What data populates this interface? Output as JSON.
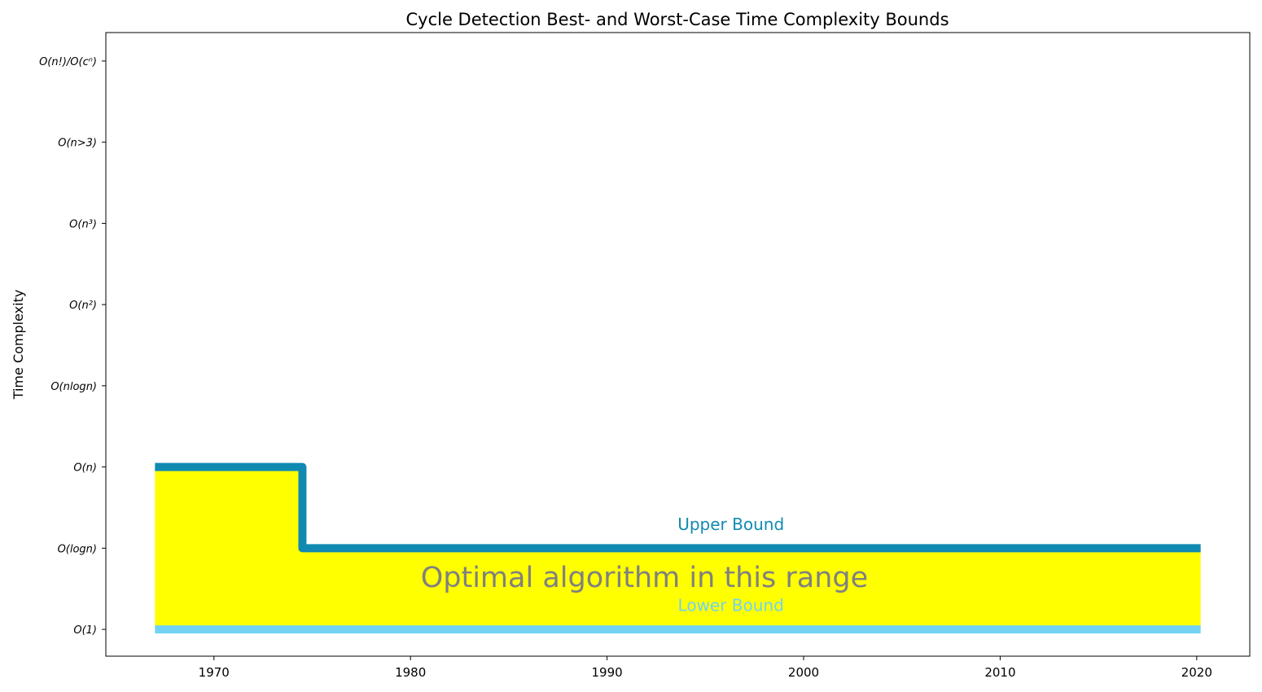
{
  "chart_data": {
    "type": "line",
    "title": "Cycle Detection Best- and Worst-Case Time Complexity Bounds",
    "xlabel": "",
    "ylabel": "Time Complexity",
    "xlim": [
      1964.5,
      2022.7
    ],
    "ylim": [
      -0.33,
      7.35
    ],
    "x_ticks": [
      1970,
      1980,
      1990,
      2000,
      2010,
      2020
    ],
    "y_ticks": [
      {
        "value": 0,
        "label": "O(1)"
      },
      {
        "value": 1,
        "label": "O(logn)"
      },
      {
        "value": 2,
        "label": "O(n)"
      },
      {
        "value": 3,
        "label": "O(nlogn)"
      },
      {
        "value": 4,
        "label": "O(n²)"
      },
      {
        "value": 5,
        "label": "O(n³)"
      },
      {
        "value": 6,
        "label": "O(n>3)"
      },
      {
        "value": 7,
        "label": "O(n!)/O(cⁿ)"
      }
    ],
    "series": [
      {
        "name": "Upper Bound",
        "color": "#118ab2",
        "x": [
          1967,
          1974.5,
          1974.5,
          2020.2
        ],
        "y": [
          2,
          2,
          1,
          1
        ]
      },
      {
        "name": "Lower Bound",
        "color": "#73d2f3",
        "x": [
          1967,
          2020.2
        ],
        "y": [
          0,
          0
        ]
      }
    ],
    "fill": {
      "color": "#ffff00",
      "between": "Upper Bound and Lower Bound"
    },
    "annotations": [
      {
        "text": "Upper Bound",
        "x": 1996.3,
        "y": 1.28,
        "color": "#118ab2"
      },
      {
        "text": "Optimal algorithm in this range",
        "x": 1991.9,
        "y": 0.62,
        "color": "#808080"
      },
      {
        "text": "Lower Bound",
        "x": 1996.3,
        "y": 0.28,
        "color": "#73d2f3"
      }
    ],
    "grid": false,
    "legend": "none"
  }
}
